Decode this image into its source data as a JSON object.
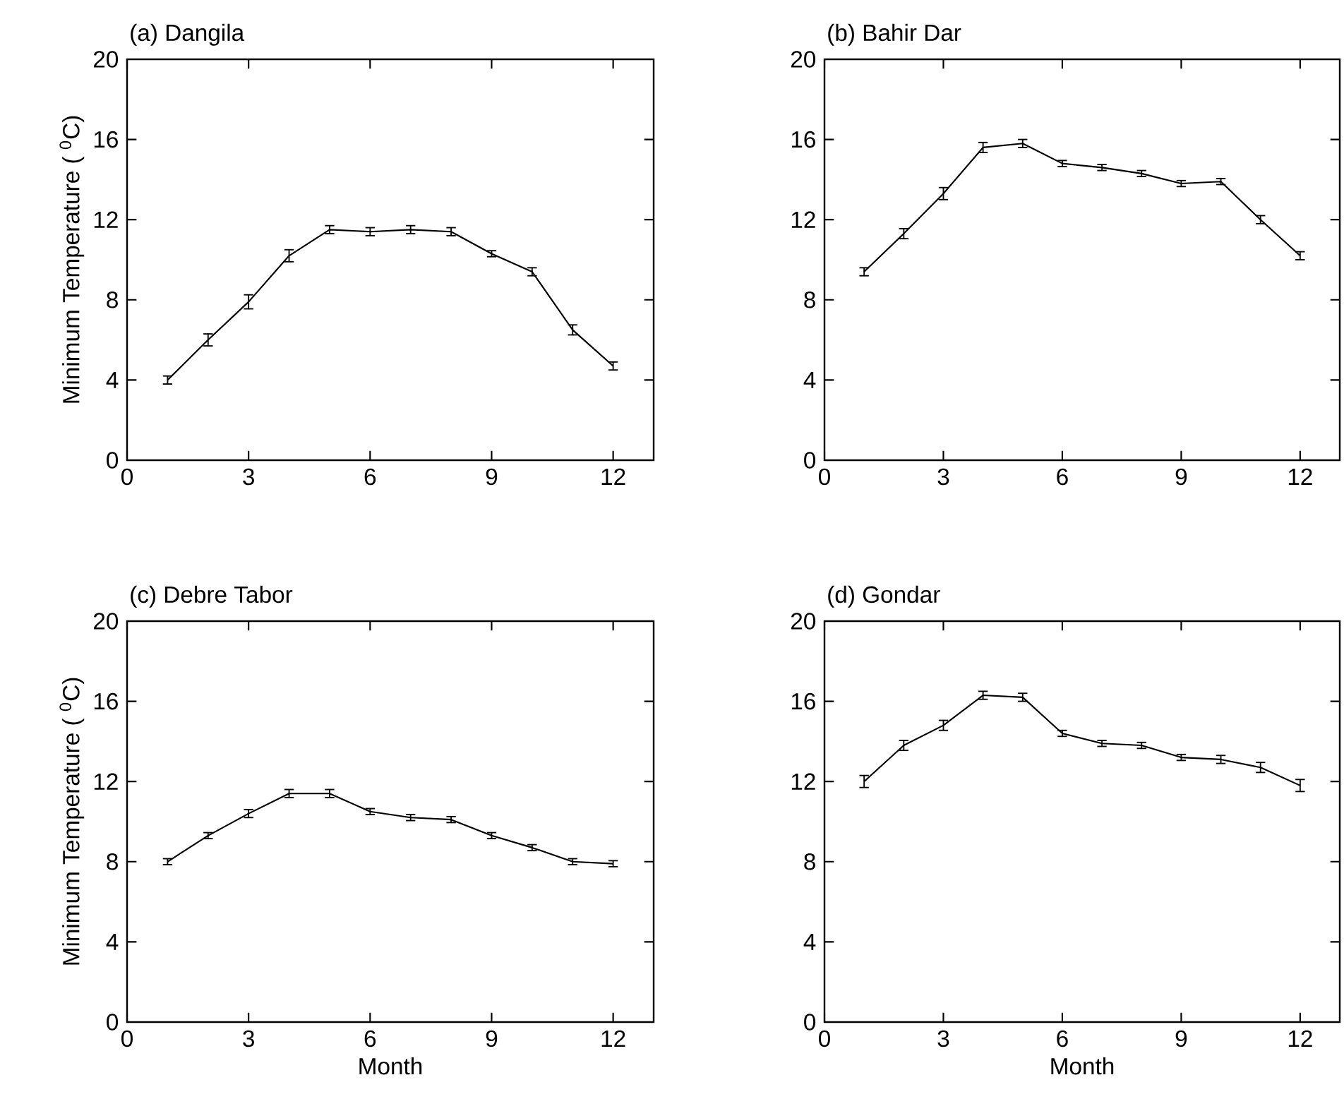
{
  "chart_data": [
    {
      "type": "line",
      "title": "(a) Dangila",
      "ylabel": "Minimum Temperature ( $^{0}$C)",
      "x": [
        1,
        2,
        3,
        4,
        5,
        6,
        7,
        8,
        9,
        10,
        11,
        12
      ],
      "series": [
        {
          "color": "#000000",
          "values": [
            4.0,
            6.0,
            7.9,
            10.2,
            11.5,
            11.4,
            11.5,
            11.4,
            10.3,
            9.4,
            6.5,
            4.7
          ],
          "errors": [
            0.2,
            0.3,
            0.35,
            0.3,
            0.2,
            0.2,
            0.2,
            0.2,
            0.15,
            0.2,
            0.25,
            0.2
          ]
        }
      ],
      "xlim": [
        0,
        13
      ],
      "xticks": [
        0,
        3,
        6,
        9,
        12
      ],
      "ylim": [
        0,
        20
      ],
      "yticks": [
        0,
        4,
        8,
        12,
        16,
        20
      ]
    },
    {
      "type": "line",
      "title": "(b) Bahir Dar",
      "x": [
        1,
        2,
        3,
        4,
        5,
        6,
        7,
        8,
        9,
        10,
        11,
        12
      ],
      "series": [
        {
          "color": "#000000",
          "values": [
            9.4,
            11.3,
            13.3,
            15.6,
            15.8,
            14.8,
            14.6,
            14.3,
            13.8,
            13.9,
            12.0,
            10.2
          ],
          "errors": [
            0.2,
            0.25,
            0.3,
            0.25,
            0.2,
            0.15,
            0.15,
            0.15,
            0.15,
            0.15,
            0.2,
            0.2
          ]
        }
      ],
      "xlim": [
        0,
        13
      ],
      "xticks": [
        0,
        3,
        6,
        9,
        12
      ],
      "ylim": [
        0,
        20
      ],
      "yticks": [
        0,
        4,
        8,
        12,
        16,
        20
      ]
    },
    {
      "type": "line",
      "title": "(c) Debre Tabor",
      "xlabel": "Month",
      "ylabel": "Minimum Temperature ( $^{0}$C)",
      "x": [
        1,
        2,
        3,
        4,
        5,
        6,
        7,
        8,
        9,
        10,
        11,
        12
      ],
      "series": [
        {
          "color": "#000000",
          "values": [
            8.0,
            9.3,
            10.4,
            11.4,
            11.4,
            10.5,
            10.2,
            10.1,
            9.3,
            8.7,
            8.0,
            7.9
          ],
          "errors": [
            0.15,
            0.15,
            0.2,
            0.2,
            0.2,
            0.15,
            0.15,
            0.15,
            0.15,
            0.15,
            0.15,
            0.15
          ]
        }
      ],
      "xlim": [
        0,
        13
      ],
      "xticks": [
        0,
        3,
        6,
        9,
        12
      ],
      "ylim": [
        0,
        20
      ],
      "yticks": [
        0,
        4,
        8,
        12,
        16,
        20
      ]
    },
    {
      "type": "line",
      "title": "(d) Gondar",
      "xlabel": "Month",
      "x": [
        1,
        2,
        3,
        4,
        5,
        6,
        7,
        8,
        9,
        10,
        11,
        12
      ],
      "series": [
        {
          "color": "#000000",
          "values": [
            12.0,
            13.8,
            14.8,
            16.3,
            16.2,
            14.4,
            13.9,
            13.8,
            13.2,
            13.1,
            12.7,
            11.8
          ],
          "errors": [
            0.3,
            0.25,
            0.25,
            0.2,
            0.2,
            0.15,
            0.15,
            0.15,
            0.15,
            0.2,
            0.25,
            0.3
          ]
        }
      ],
      "xlim": [
        0,
        13
      ],
      "xticks": [
        0,
        3,
        6,
        9,
        12
      ],
      "ylim": [
        0,
        20
      ],
      "yticks": [
        0,
        4,
        8,
        12,
        16,
        20
      ]
    }
  ]
}
